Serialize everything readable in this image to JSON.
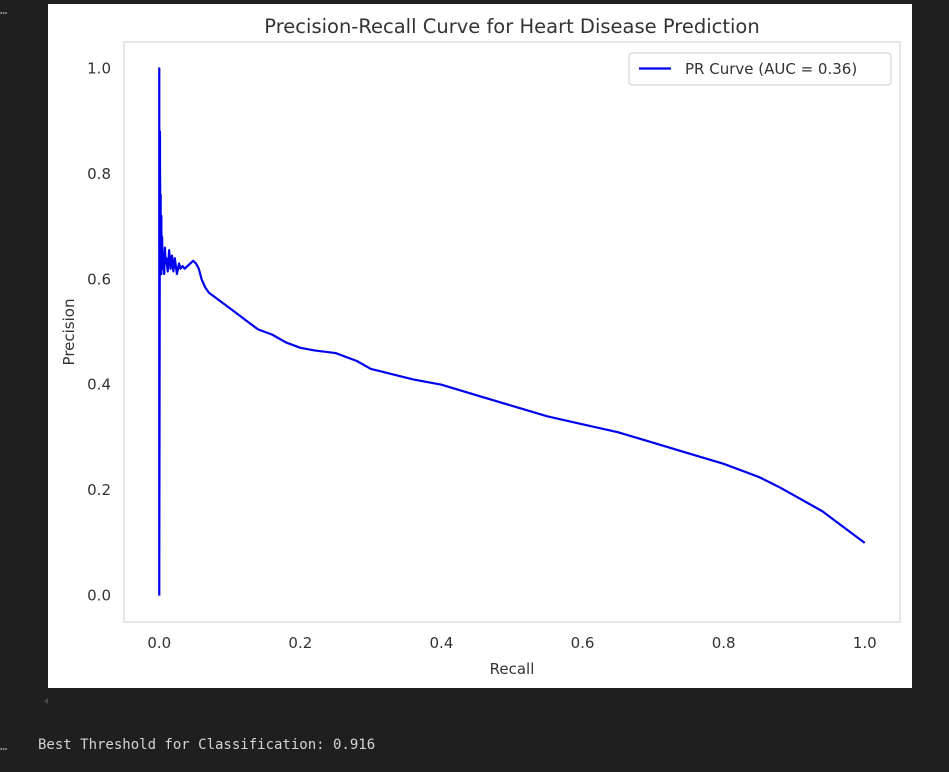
{
  "cell": {
    "top_marker": "…",
    "bottom_marker": "…",
    "output_text": "Best Threshold for Classification: 0.916"
  },
  "chart_data": {
    "type": "line",
    "title": "Precision-Recall Curve for Heart Disease Prediction",
    "xlabel": "Recall",
    "ylabel": "Precision",
    "xlim": [
      -0.05,
      1.05
    ],
    "ylim": [
      -0.05,
      1.05
    ],
    "x_ticks": [
      0.0,
      0.2,
      0.4,
      0.6,
      0.8,
      1.0
    ],
    "y_ticks": [
      0.0,
      0.2,
      0.4,
      0.6,
      0.8,
      1.0
    ],
    "x_tick_labels": [
      "0.0",
      "0.2",
      "0.4",
      "0.6",
      "0.8",
      "1.0"
    ],
    "y_tick_labels": [
      "0.0",
      "0.2",
      "0.4",
      "0.6",
      "0.8",
      "1.0"
    ],
    "grid": false,
    "legend_position": "top-right",
    "series": [
      {
        "name": "PR Curve (AUC = 0.36)",
        "color": "#0000ee",
        "x": [
          0.0,
          0.0,
          0.0,
          0.001,
          0.001,
          0.001,
          0.002,
          0.002,
          0.002,
          0.003,
          0.003,
          0.003,
          0.004,
          0.004,
          0.005,
          0.006,
          0.007,
          0.008,
          0.009,
          0.01,
          0.012,
          0.014,
          0.016,
          0.018,
          0.02,
          0.022,
          0.025,
          0.028,
          0.03,
          0.033,
          0.036,
          0.04,
          0.044,
          0.048,
          0.052,
          0.056,
          0.06,
          0.065,
          0.07,
          0.075,
          0.08,
          0.09,
          0.1,
          0.11,
          0.12,
          0.13,
          0.14,
          0.15,
          0.16,
          0.18,
          0.2,
          0.22,
          0.25,
          0.28,
          0.3,
          0.33,
          0.36,
          0.4,
          0.45,
          0.5,
          0.55,
          0.6,
          0.65,
          0.7,
          0.75,
          0.8,
          0.85,
          0.88,
          0.9,
          0.92,
          0.94,
          0.96,
          0.98,
          0.99,
          1.0
        ],
        "y": [
          0.0,
          1.0,
          0.05,
          0.88,
          0.7,
          0.82,
          0.63,
          0.76,
          0.66,
          0.72,
          0.61,
          0.69,
          0.64,
          0.68,
          0.62,
          0.65,
          0.61,
          0.66,
          0.63,
          0.64,
          0.615,
          0.655,
          0.62,
          0.645,
          0.615,
          0.64,
          0.61,
          0.63,
          0.62,
          0.625,
          0.62,
          0.625,
          0.63,
          0.635,
          0.63,
          0.62,
          0.6,
          0.585,
          0.575,
          0.57,
          0.565,
          0.555,
          0.545,
          0.535,
          0.525,
          0.515,
          0.505,
          0.5,
          0.495,
          0.48,
          0.47,
          0.465,
          0.46,
          0.445,
          0.43,
          0.42,
          0.41,
          0.4,
          0.38,
          0.36,
          0.34,
          0.325,
          0.31,
          0.29,
          0.27,
          0.25,
          0.225,
          0.205,
          0.19,
          0.175,
          0.16,
          0.14,
          0.12,
          0.11,
          0.1
        ]
      }
    ]
  }
}
